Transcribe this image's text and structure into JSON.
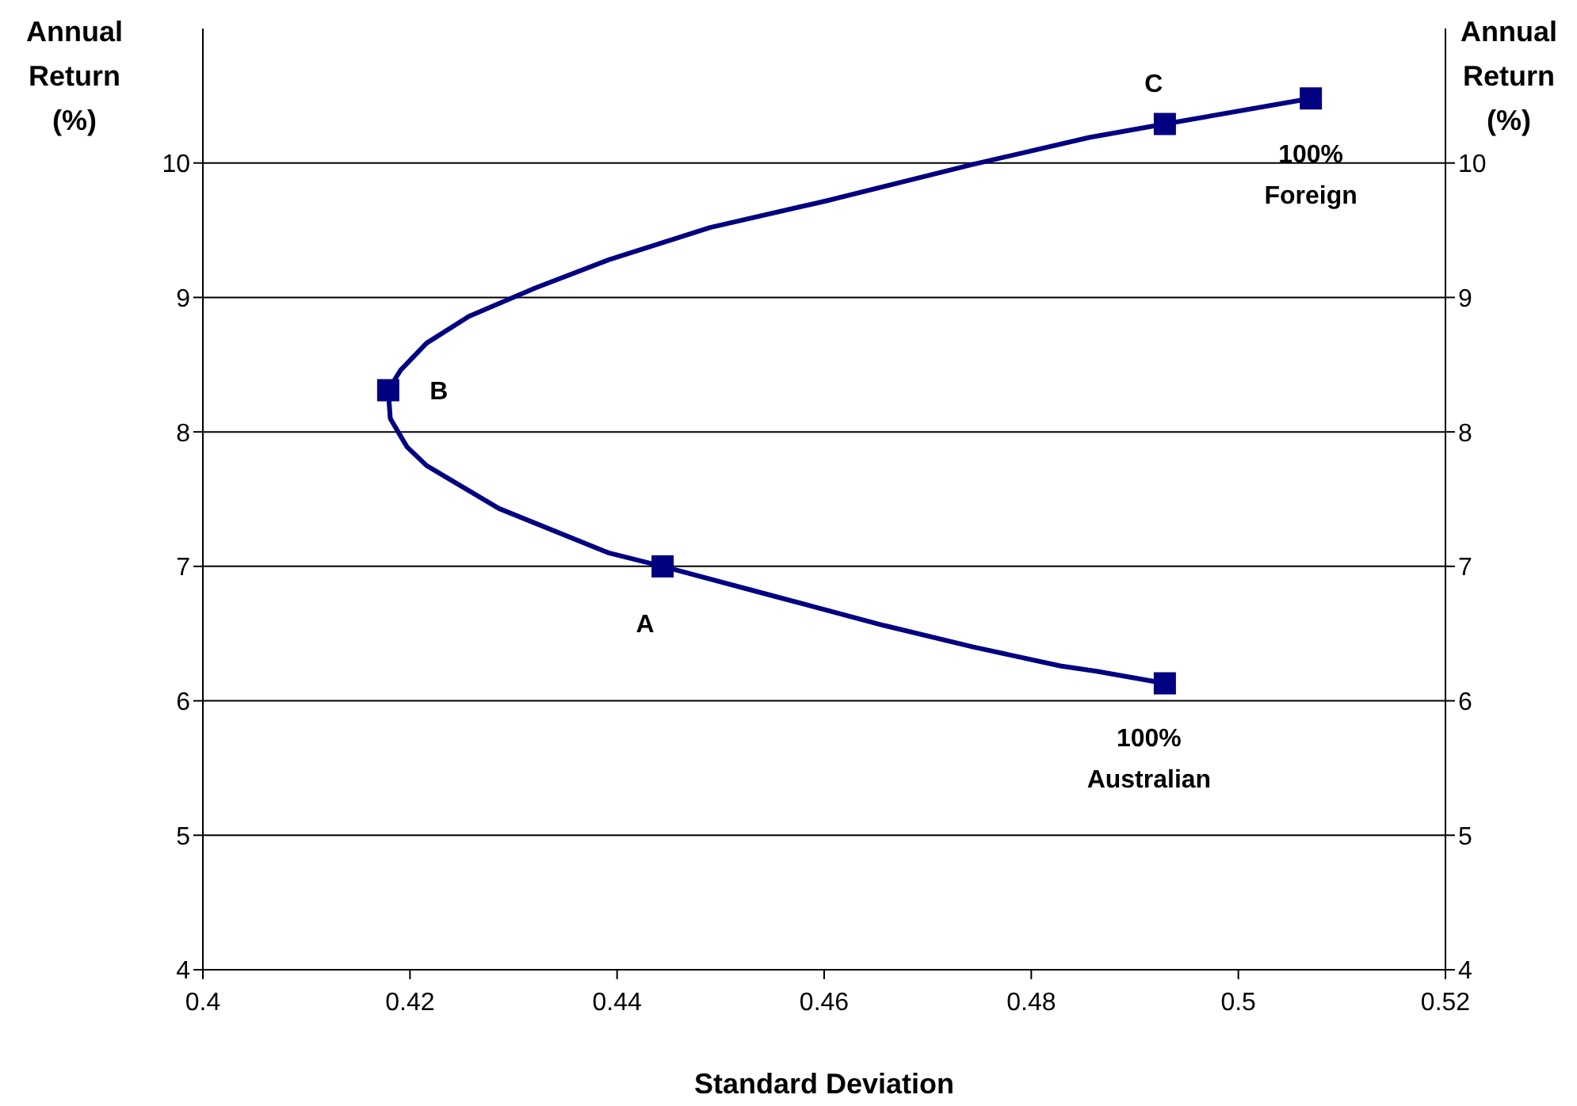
{
  "chart_data": {
    "type": "line",
    "xlabel": "Standard Deviation",
    "ylabel": "Annual Return (%)",
    "y2label": "Annual Return (%)",
    "xlim": [
      0.4,
      0.52
    ],
    "xticks": [
      0.4,
      0.42,
      0.44,
      0.46,
      0.48,
      0.5,
      0.52
    ],
    "ylim": [
      4,
      11
    ],
    "yticks": [
      4,
      5,
      6,
      7,
      8,
      9,
      10
    ],
    "y2lim": [
      4,
      11
    ],
    "y2ticks": [
      4,
      5,
      6,
      7,
      8,
      9,
      10
    ],
    "grid": "y",
    "series": [
      {
        "color": "#000080",
        "marker": "none",
        "x": [
          0.507,
          0.4929,
          0.4856,
          0.4744,
          0.4603,
          0.449,
          0.4392,
          0.4321,
          0.4257,
          0.4216,
          0.4191,
          0.4179,
          0.4181,
          0.4197,
          0.4216,
          0.4286,
          0.4392,
          0.4444,
          0.4546,
          0.4658,
          0.4744,
          0.4828,
          0.4863,
          0.4929
        ],
        "values": [
          10.48,
          10.29,
          10.19,
          9.99,
          9.72,
          9.52,
          9.28,
          9.07,
          8.86,
          8.66,
          8.46,
          8.31,
          8.1,
          7.89,
          7.75,
          7.43,
          7.1,
          7.0,
          6.79,
          6.56,
          6.4,
          6.26,
          6.22,
          6.13
        ]
      },
      {
        "type": "scatter",
        "color": "#000080",
        "marker": "square",
        "x": [
          0.507,
          0.4929,
          0.4179,
          0.4444,
          0.4929
        ],
        "values": [
          10.48,
          10.29,
          8.31,
          7.0,
          6.13
        ]
      }
    ],
    "annotations": [
      {
        "text": "A",
        "x": 0.4444,
        "y": 7.0
      },
      {
        "text": "B",
        "x": 0.4179,
        "y": 8.31
      },
      {
        "text": "C",
        "x": 0.4929,
        "y": 10.29
      },
      {
        "text": "100% Foreign",
        "x": 0.507,
        "y": 10.48
      },
      {
        "text": "100% Australian",
        "x": 0.4929,
        "y": 6.13
      }
    ]
  }
}
